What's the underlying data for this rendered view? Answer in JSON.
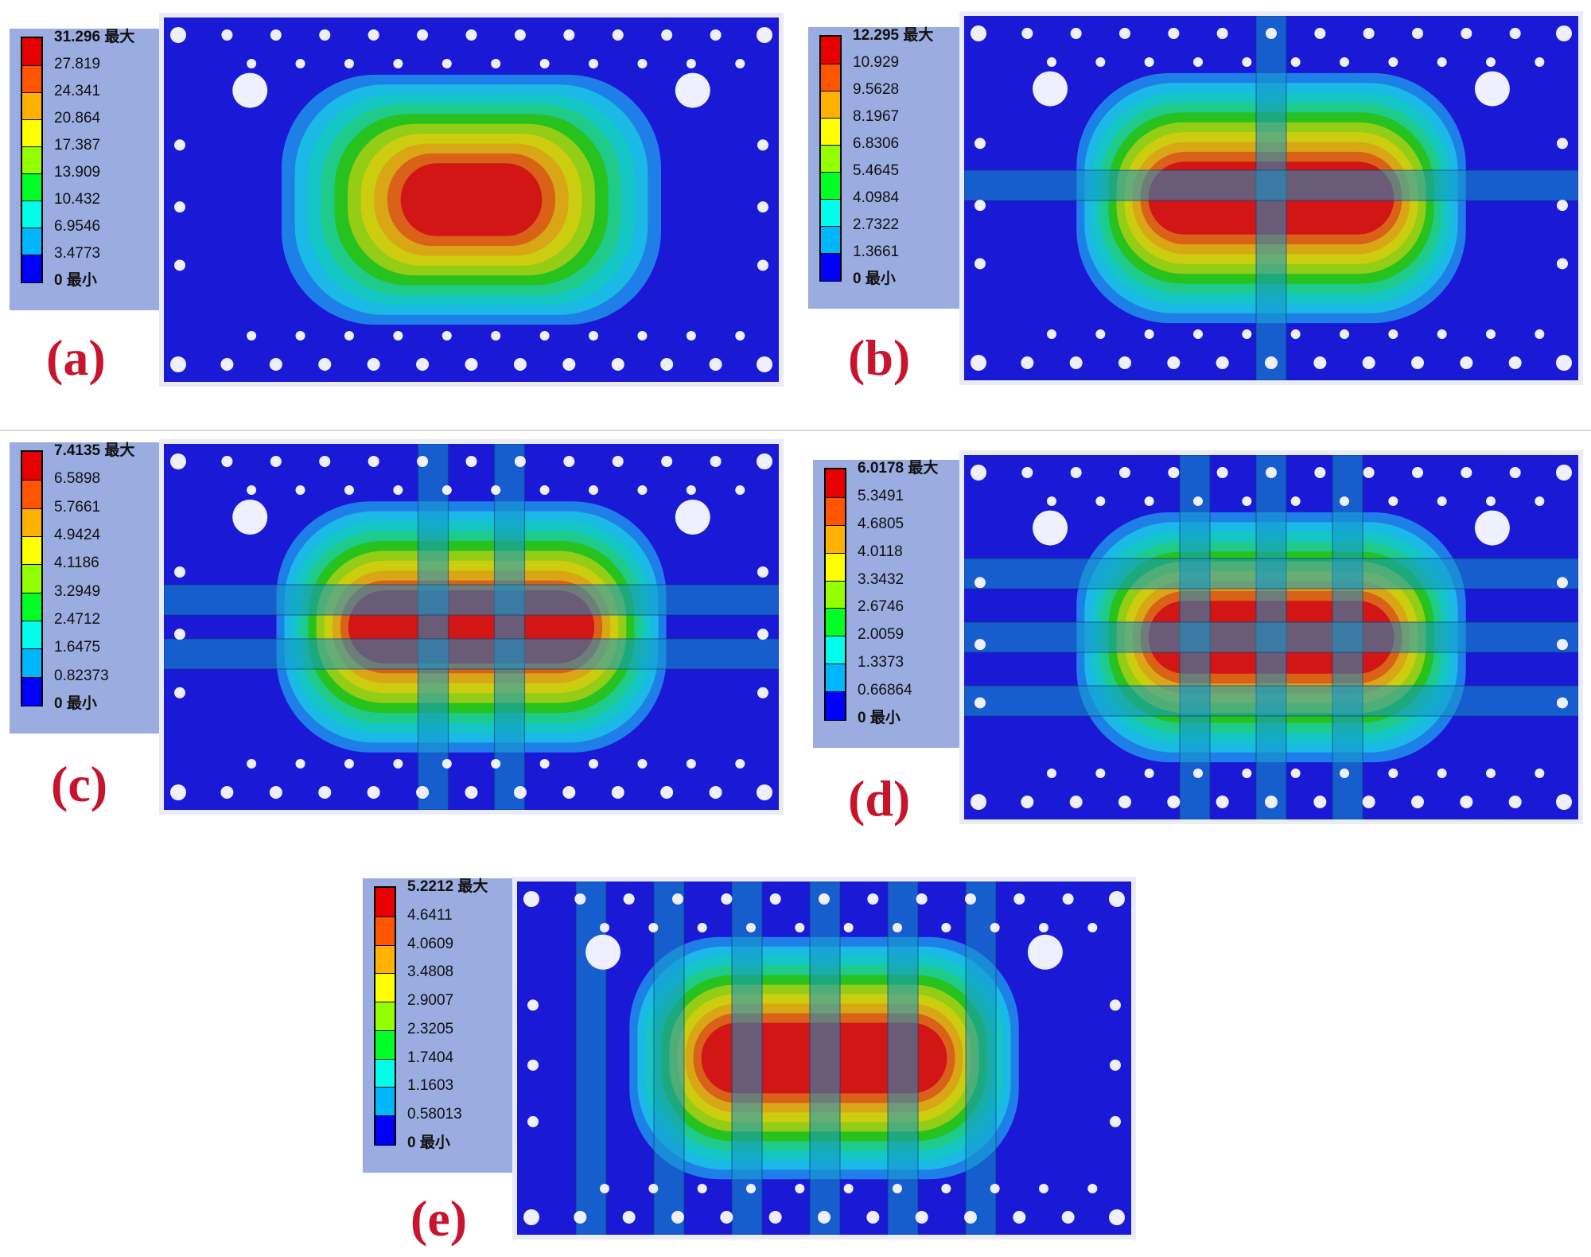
{
  "colors": {
    "scale": [
      "#0000ff",
      "#005bff",
      "#00b7ff",
      "#00ffea",
      "#00ff8e",
      "#00ff24",
      "#94ff00",
      "#ffff00",
      "#ffb000",
      "#ff5400",
      "#e60000"
    ],
    "contour": [
      "#1a1ad6",
      "#1f7fe8",
      "#1ab9e6",
      "#14c6c4",
      "#1ecb8a",
      "#27c21e",
      "#94cd16",
      "#cdcd10",
      "#d9a616",
      "#d96218",
      "#d21515"
    ],
    "legend_bg": "#9aace0",
    "plate": "#1a1ad6",
    "hole": "#eef0ff",
    "tag": "#c8142d"
  },
  "panels": [
    {
      "id": "a",
      "tag": "(a)",
      "bands": 0,
      "legend": {
        "max": "31.296 最大",
        "values": [
          "27.819",
          "24.341",
          "20.864",
          "17.387",
          "13.909",
          "10.432",
          "6.9546",
          "3.4773"
        ],
        "min": "0 最小"
      }
    },
    {
      "id": "b",
      "tag": "(b)",
      "bands": 1,
      "legend": {
        "max": "12.295 最大",
        "values": [
          "10.929",
          "9.5628",
          "8.1967",
          "6.8306",
          "5.4645",
          "4.0984",
          "2.7322",
          "1.3661"
        ],
        "min": "0 最小"
      }
    },
    {
      "id": "c",
      "tag": "(c)",
      "bands": 2,
      "legend": {
        "max": "7.4135 最大",
        "values": [
          "6.5898",
          "5.7661",
          "4.9424",
          "4.1186",
          "3.2949",
          "2.4712",
          "1.6475",
          "0.82373"
        ],
        "min": "0 最小"
      }
    },
    {
      "id": "d",
      "tag": "(d)",
      "bands": 3,
      "legend": {
        "max": "6.0178 最大",
        "values": [
          "5.3491",
          "4.6805",
          "4.0118",
          "3.3432",
          "2.6746",
          "2.0059",
          "1.3373",
          "0.66864"
        ],
        "min": "0 最小"
      }
    },
    {
      "id": "e",
      "tag": "(e)",
      "bands": 6,
      "legend": {
        "max": "5.2212 最大",
        "values": [
          "4.6411",
          "4.0609",
          "3.4808",
          "2.9007",
          "2.3205",
          "1.7404",
          "1.1603",
          "0.58013"
        ],
        "min": "0 最小"
      }
    }
  ]
}
